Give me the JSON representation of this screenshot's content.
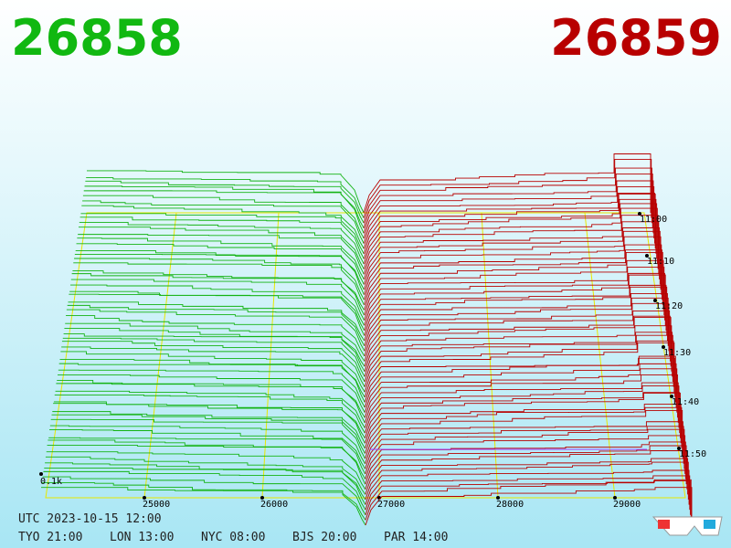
{
  "header": {
    "bid": "26858",
    "ask": "26859"
  },
  "price_axis": {
    "labels": [
      "25000",
      "26000",
      "27000",
      "28000",
      "29000"
    ]
  },
  "depth_label": "0.1k",
  "time_axis": {
    "labels": [
      "11:00",
      "11:10",
      "11:20",
      "11:30",
      "11:40",
      "11:50"
    ]
  },
  "footer": {
    "utc": "UTC 2023-10-15 12:00",
    "clocks": [
      "TYO 21:00",
      "LON 13:00",
      "NYC 08:00",
      "BJS 20:00",
      "PAR 14:00"
    ]
  }
}
